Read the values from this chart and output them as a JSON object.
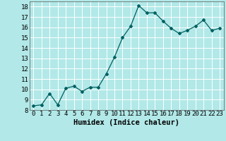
{
  "x": [
    0,
    1,
    2,
    3,
    4,
    5,
    6,
    7,
    8,
    9,
    10,
    11,
    12,
    13,
    14,
    15,
    16,
    17,
    18,
    19,
    20,
    21,
    22,
    23
  ],
  "y": [
    8.4,
    8.5,
    9.6,
    8.5,
    10.1,
    10.3,
    9.8,
    10.2,
    10.2,
    11.5,
    13.1,
    15.0,
    16.1,
    18.1,
    17.4,
    17.4,
    16.6,
    15.9,
    15.4,
    15.7,
    16.1,
    16.7,
    15.7,
    15.9
  ],
  "line_color": "#006060",
  "marker": "D",
  "marker_size": 2.0,
  "bg_color": "#b2e8e8",
  "grid_color": "#ffffff",
  "xlabel": "Humidex (Indice chaleur)",
  "xlabel_fontsize": 7.5,
  "tick_fontsize": 6.5,
  "ylim": [
    8,
    18.5
  ],
  "xlim": [
    -0.5,
    23.5
  ],
  "yticks": [
    8,
    9,
    10,
    11,
    12,
    13,
    14,
    15,
    16,
    17,
    18
  ],
  "xticks": [
    0,
    1,
    2,
    3,
    4,
    5,
    6,
    7,
    8,
    9,
    10,
    11,
    12,
    13,
    14,
    15,
    16,
    17,
    18,
    19,
    20,
    21,
    22,
    23
  ]
}
